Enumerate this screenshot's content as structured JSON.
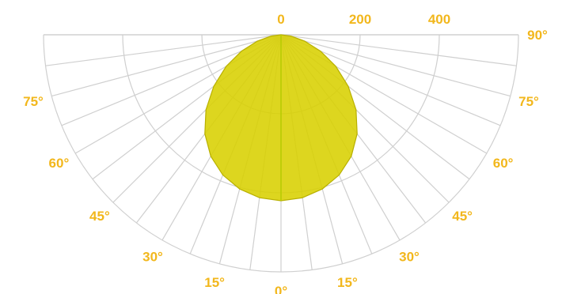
{
  "chart_data": {
    "type": "polar-area",
    "radial_axis": {
      "range": [
        0,
        600
      ],
      "ticks": [
        0,
        200,
        400
      ],
      "tick_labels": [
        "0",
        "200",
        "400"
      ],
      "grid_rings": [
        200,
        400,
        600
      ]
    },
    "angular_axis": {
      "range_deg": [
        -90,
        90
      ],
      "spoke_every_deg": 7.5,
      "left_labels": [
        {
          "angle": 75,
          "text": "75°"
        },
        {
          "angle": 60,
          "text": "60°"
        },
        {
          "angle": 45,
          "text": "45°"
        },
        {
          "angle": 30,
          "text": "30°"
        },
        {
          "angle": 15,
          "text": "15°"
        },
        {
          "angle": 0,
          "text": "0°"
        }
      ],
      "right_labels": [
        {
          "angle": 15,
          "text": "15°"
        },
        {
          "angle": 30,
          "text": "30°"
        },
        {
          "angle": 45,
          "text": "45°"
        },
        {
          "angle": 60,
          "text": "60°"
        },
        {
          "angle": 75,
          "text": "75°"
        },
        {
          "angle": 90,
          "text": "90°"
        }
      ]
    },
    "series": [
      {
        "color": "#d8d000",
        "angles": [
          0,
          7.5,
          15,
          22.5,
          30,
          37.5,
          45,
          52.5,
          60,
          67.5,
          75,
          82.5,
          90
        ],
        "values": [
          420,
          416,
          404,
          384,
          355,
          316,
          268,
          214,
          160,
          108,
          62,
          25,
          0
        ]
      }
    ],
    "grid": true,
    "legend": false
  }
}
